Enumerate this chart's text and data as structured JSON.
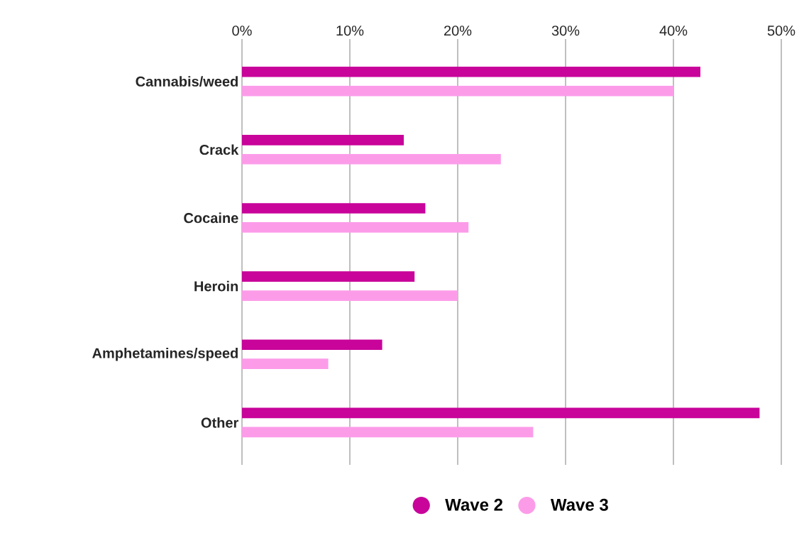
{
  "chart_data": {
    "type": "bar",
    "orientation": "horizontal",
    "categories": [
      "Cannabis/weed",
      "Crack",
      "Cocaine",
      "Heroin",
      "Amphetamines/speed",
      "Other"
    ],
    "series": [
      {
        "name": "Wave 2",
        "color": "#c8049a",
        "values": [
          42.5,
          15,
          17,
          16,
          13,
          48
        ]
      },
      {
        "name": "Wave 3",
        "color": "#fc9ce9",
        "values": [
          40,
          24,
          21,
          20,
          8,
          27
        ]
      }
    ],
    "xlim": [
      0,
      50
    ],
    "xticks": [
      {
        "value": 0,
        "label": "0%"
      },
      {
        "value": 10,
        "label": "10%"
      },
      {
        "value": 20,
        "label": "20%"
      },
      {
        "value": 30,
        "label": "30%"
      },
      {
        "value": 40,
        "label": "40%"
      },
      {
        "value": 50,
        "label": "50%"
      }
    ],
    "grid": "x",
    "legend": "bottom"
  }
}
